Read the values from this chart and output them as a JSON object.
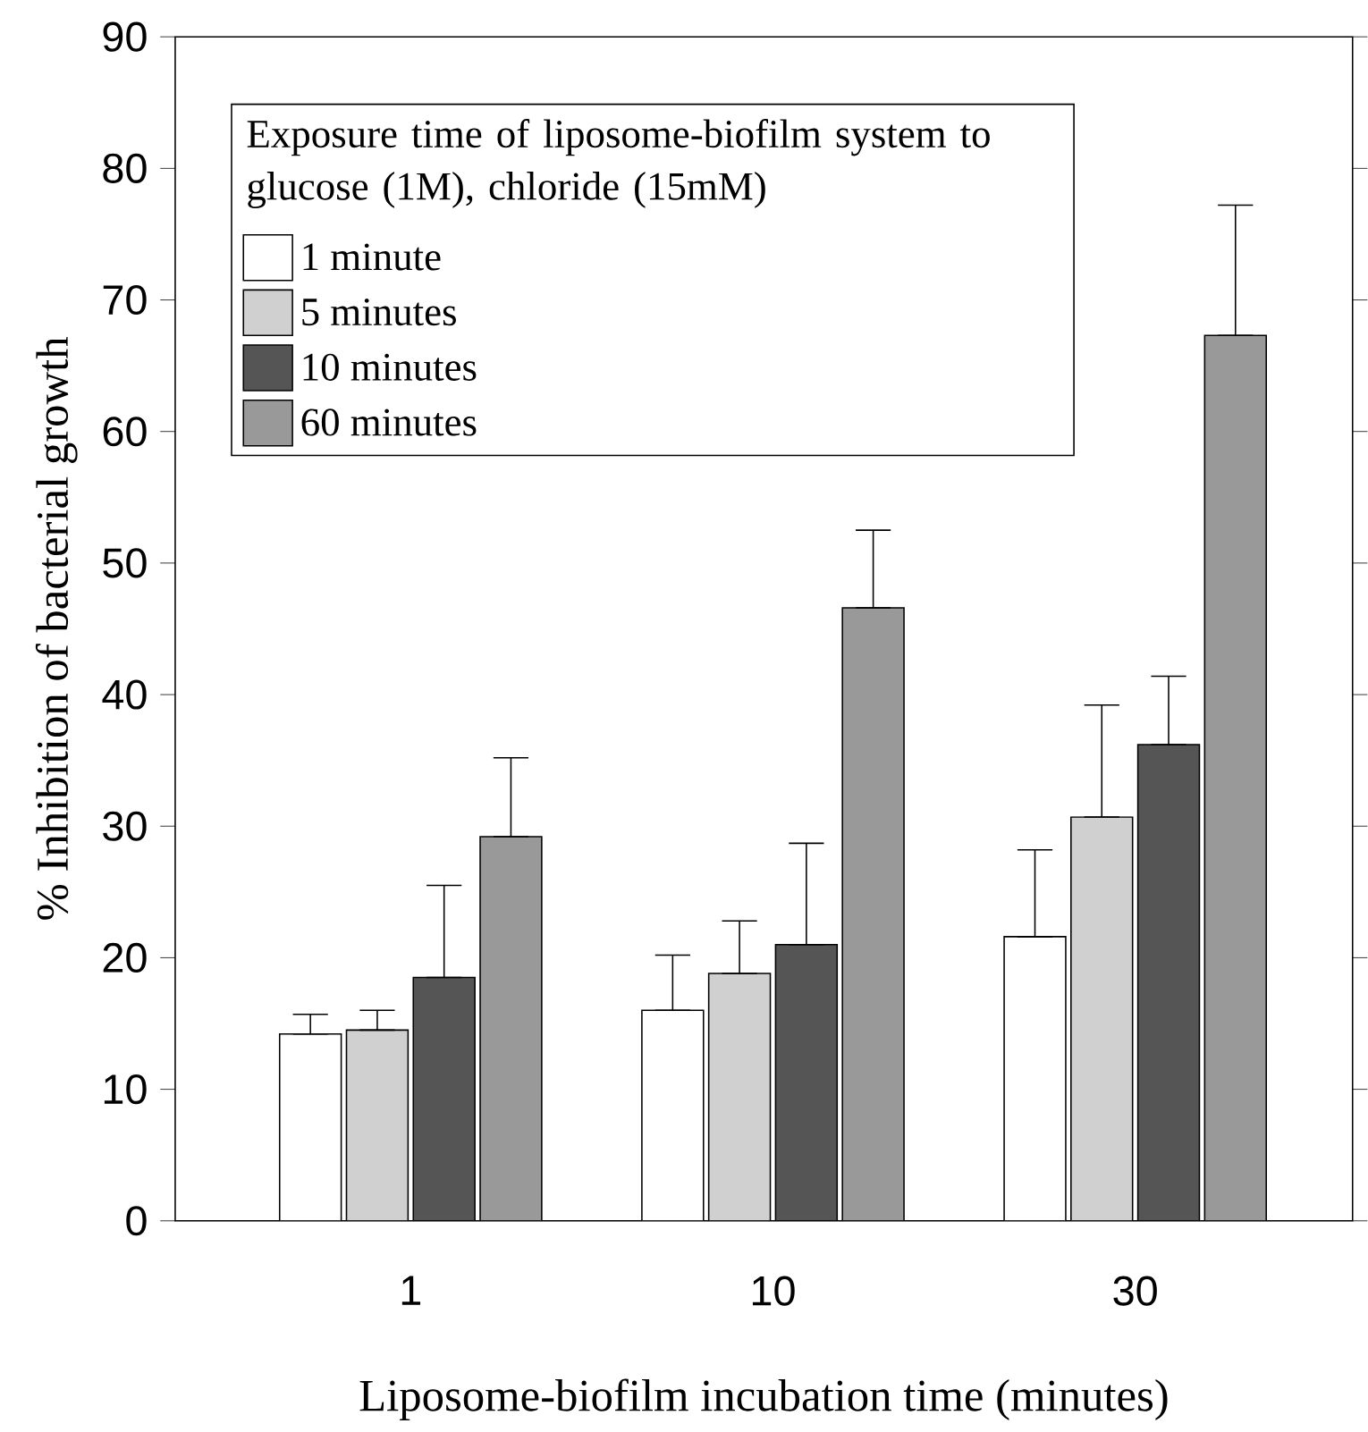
{
  "chart_data": {
    "type": "bar",
    "xlabel": "Liposome-biofilm incubation time (minutes)",
    "ylabel": "% Inhibition of bacterial growth",
    "legend_title": "Exposure time of liposome-biofilm system to glucose (1M), chloride (15mM)",
    "categories": [
      "1",
      "10",
      "30"
    ],
    "series": [
      {
        "name": "1 minute",
        "color": "#ffffff",
        "values": [
          14.2,
          16.0,
          21.6
        ],
        "errors": [
          [
            14.2,
            15.7
          ],
          [
            16.0,
            20.2
          ],
          [
            21.6,
            28.2
          ]
        ]
      },
      {
        "name": "5 minutes",
        "color": "#d0d0d0",
        "values": [
          14.5,
          18.8,
          30.7
        ],
        "errors": [
          [
            14.5,
            16.0
          ],
          [
            18.8,
            22.8
          ],
          [
            30.7,
            39.2
          ]
        ]
      },
      {
        "name": "10 minutes",
        "color": "#555555",
        "values": [
          18.5,
          21.0,
          36.2
        ],
        "errors": [
          [
            18.5,
            25.5
          ],
          [
            21.0,
            28.7
          ],
          [
            36.2,
            41.4
          ]
        ]
      },
      {
        "name": "60 minutes",
        "color": "#999999",
        "values": [
          29.2,
          46.6,
          67.3
        ],
        "errors": [
          [
            29.2,
            35.2
          ],
          [
            46.6,
            52.5
          ],
          [
            67.3,
            77.2
          ]
        ]
      }
    ],
    "ylim": [
      0,
      90
    ],
    "yticks": [
      0,
      10,
      20,
      30,
      40,
      50,
      60,
      70,
      80,
      90
    ],
    "legend": "top left"
  }
}
